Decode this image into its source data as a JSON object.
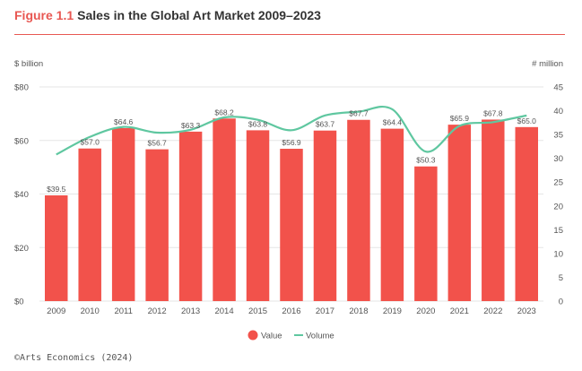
{
  "header": {
    "figure_label": "Figure 1.1",
    "title": "Sales in the Global Art Market 2009–2023"
  },
  "footer": {
    "credit": "©Arts Economics (2024)"
  },
  "colors": {
    "accent": "#e85752",
    "bar": "#f2524b",
    "line": "#5fc7a0",
    "grid": "#e6e6e6",
    "text": "#555555"
  },
  "chart_data": {
    "type": "bar",
    "title": "Sales in the Global Art Market 2009–2023",
    "categories": [
      "2009",
      "2010",
      "2011",
      "2012",
      "2013",
      "2014",
      "2015",
      "2016",
      "2017",
      "2018",
      "2019",
      "2020",
      "2021",
      "2022",
      "2023"
    ],
    "series": [
      {
        "name": "Value",
        "type": "bar",
        "axis": "left",
        "values": [
          39.5,
          57.0,
          64.6,
          56.7,
          63.3,
          68.2,
          63.8,
          56.9,
          63.7,
          67.7,
          64.4,
          50.3,
          65.9,
          67.8,
          65.0
        ],
        "labels": [
          "$39.5",
          "$57.0",
          "$64.6",
          "$56.7",
          "$63.3",
          "$68.2",
          "$63.8",
          "$56.9",
          "$63.7",
          "$67.7",
          "$64.4",
          "$50.3",
          "$65.9",
          "$67.8",
          "$65.0"
        ]
      },
      {
        "name": "Volume",
        "type": "line",
        "axis": "right",
        "values": [
          30.8,
          34.5,
          36.6,
          35.4,
          36.0,
          38.6,
          38.1,
          35.9,
          39.0,
          39.8,
          40.3,
          31.4,
          36.8,
          37.6,
          39.0
        ]
      }
    ],
    "y_left": {
      "label": "$ billion",
      "ticks": [
        "$0",
        "$20",
        "$40",
        "$60",
        "$80"
      ],
      "tick_values": [
        0,
        20,
        40,
        60,
        80
      ],
      "ylim": [
        0,
        80
      ]
    },
    "y_right": {
      "label": "# million",
      "ticks": [
        "0",
        "5",
        "10",
        "15",
        "20",
        "25",
        "30",
        "35",
        "40",
        "45"
      ],
      "tick_values": [
        0,
        5,
        10,
        15,
        20,
        25,
        30,
        35,
        40,
        45
      ],
      "ylim": [
        0,
        45
      ]
    },
    "grid": true,
    "legend": {
      "position": "bottom",
      "items": [
        "Value",
        "Volume"
      ]
    }
  }
}
